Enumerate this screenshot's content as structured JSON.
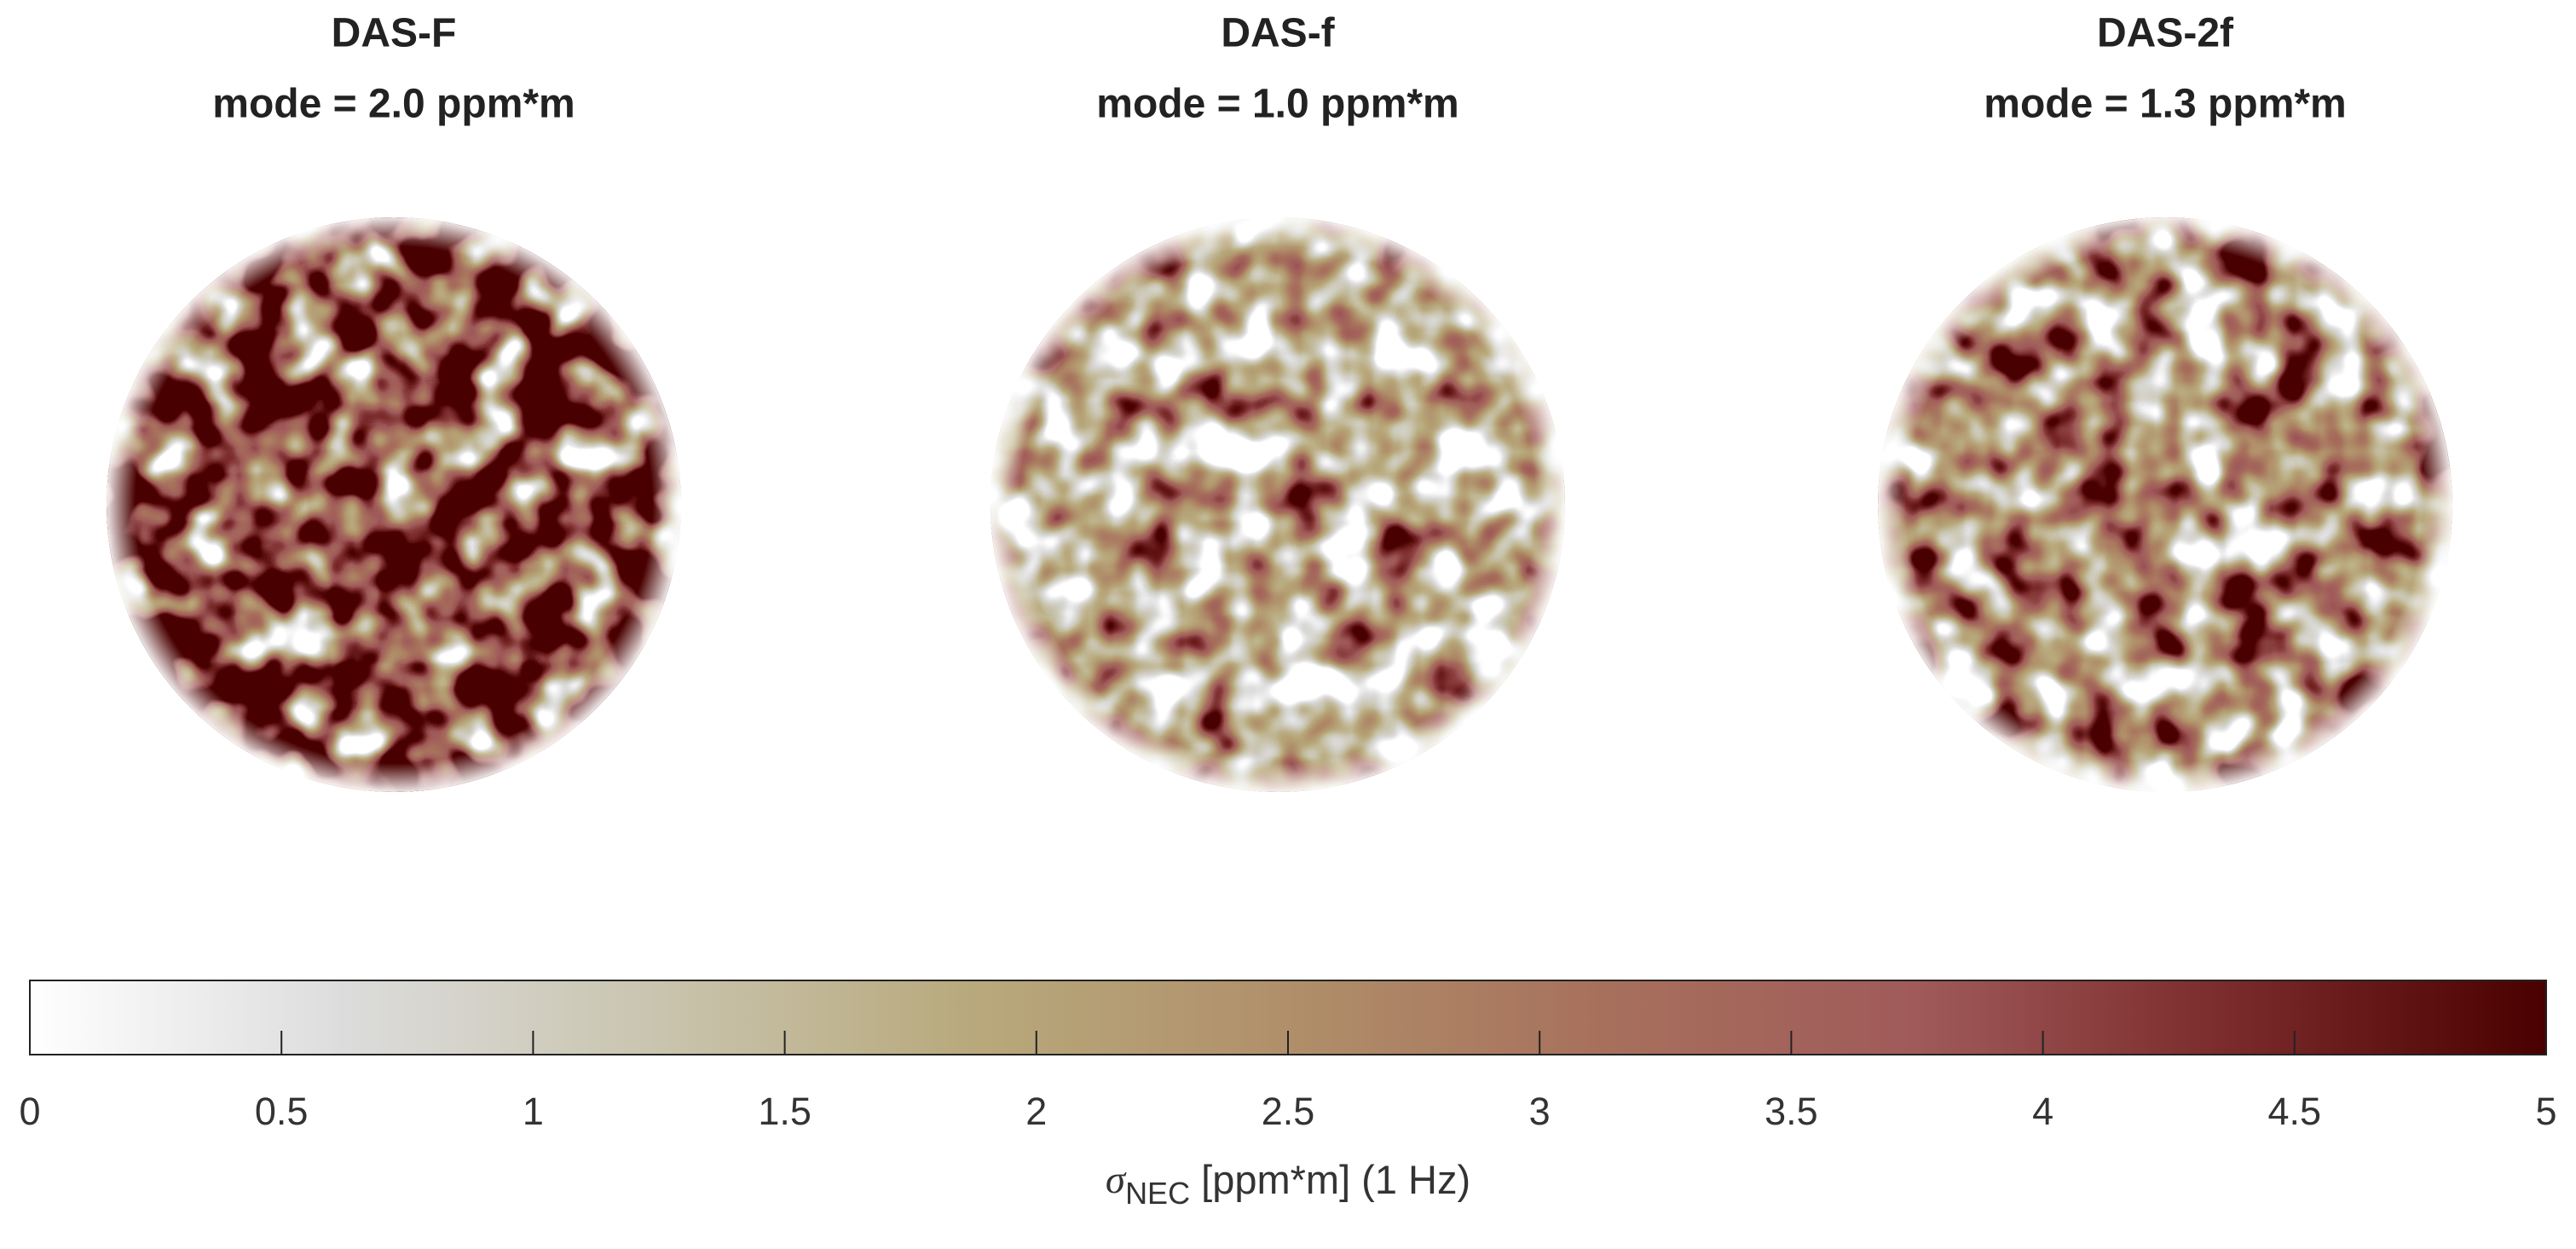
{
  "chart_data": {
    "type": "heatmap",
    "panels": [
      {
        "title": "DAS-F",
        "subtitle": "mode = 2.0  ppm*m"
      },
      {
        "title": "DAS-f",
        "subtitle": "mode = 1.0  ppm*m"
      },
      {
        "title": "DAS-2f",
        "subtitle": "mode = 1.3  ppm*m"
      }
    ],
    "colorbar": {
      "clim": [
        0,
        5
      ],
      "ticks": [
        0,
        0.5,
        1,
        1.5,
        2,
        2.5,
        3,
        3.5,
        4,
        4.5,
        5
      ],
      "colors": [
        "#ffffff",
        "#dcdcdc",
        "#c9c4ae",
        "#b8a97c",
        "#b08f6a",
        "#a7705c",
        "#a05a5a",
        "#7a2a2a",
        "#4a0000"
      ],
      "label": {
        "symbol": "σ",
        "subscript": "NEC",
        "text": " [ppm*m] (1 Hz)"
      }
    }
  }
}
